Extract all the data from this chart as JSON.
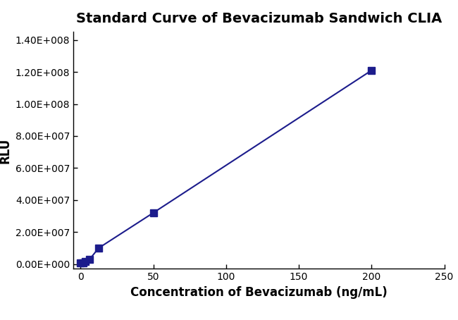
{
  "title": "Standard Curve of Bevacizumab Sandwich CLIA",
  "xlabel": "Concentration of Bevacizumab (ng/mL)",
  "ylabel": "RLU",
  "x_data": [
    0,
    1.56,
    3.125,
    6.25,
    12.5,
    50,
    200
  ],
  "y_data": [
    500000,
    800000,
    1500000,
    3000000,
    10000000,
    32000000,
    121000000
  ],
  "line_color": "#1c1c8c",
  "marker": "s",
  "marker_size": 7,
  "xlim": [
    -5,
    250
  ],
  "ylim": [
    -3000000,
    145000000
  ],
  "xticks": [
    0,
    50,
    100,
    150,
    200,
    250
  ],
  "yticks": [
    0,
    20000000,
    40000000,
    60000000,
    80000000,
    100000000,
    120000000,
    140000000
  ],
  "ytick_labels": [
    "0.00E+000",
    "2.00E+007",
    "4.00E+007",
    "6.00E+007",
    "8.00E+007",
    "1.00E+008",
    "1.20E+008",
    "1.40E+008"
  ],
  "title_fontsize": 14,
  "label_fontsize": 12,
  "tick_fontsize": 10,
  "background_color": "#ffffff",
  "figwidth": 6.5,
  "figheight": 4.54
}
